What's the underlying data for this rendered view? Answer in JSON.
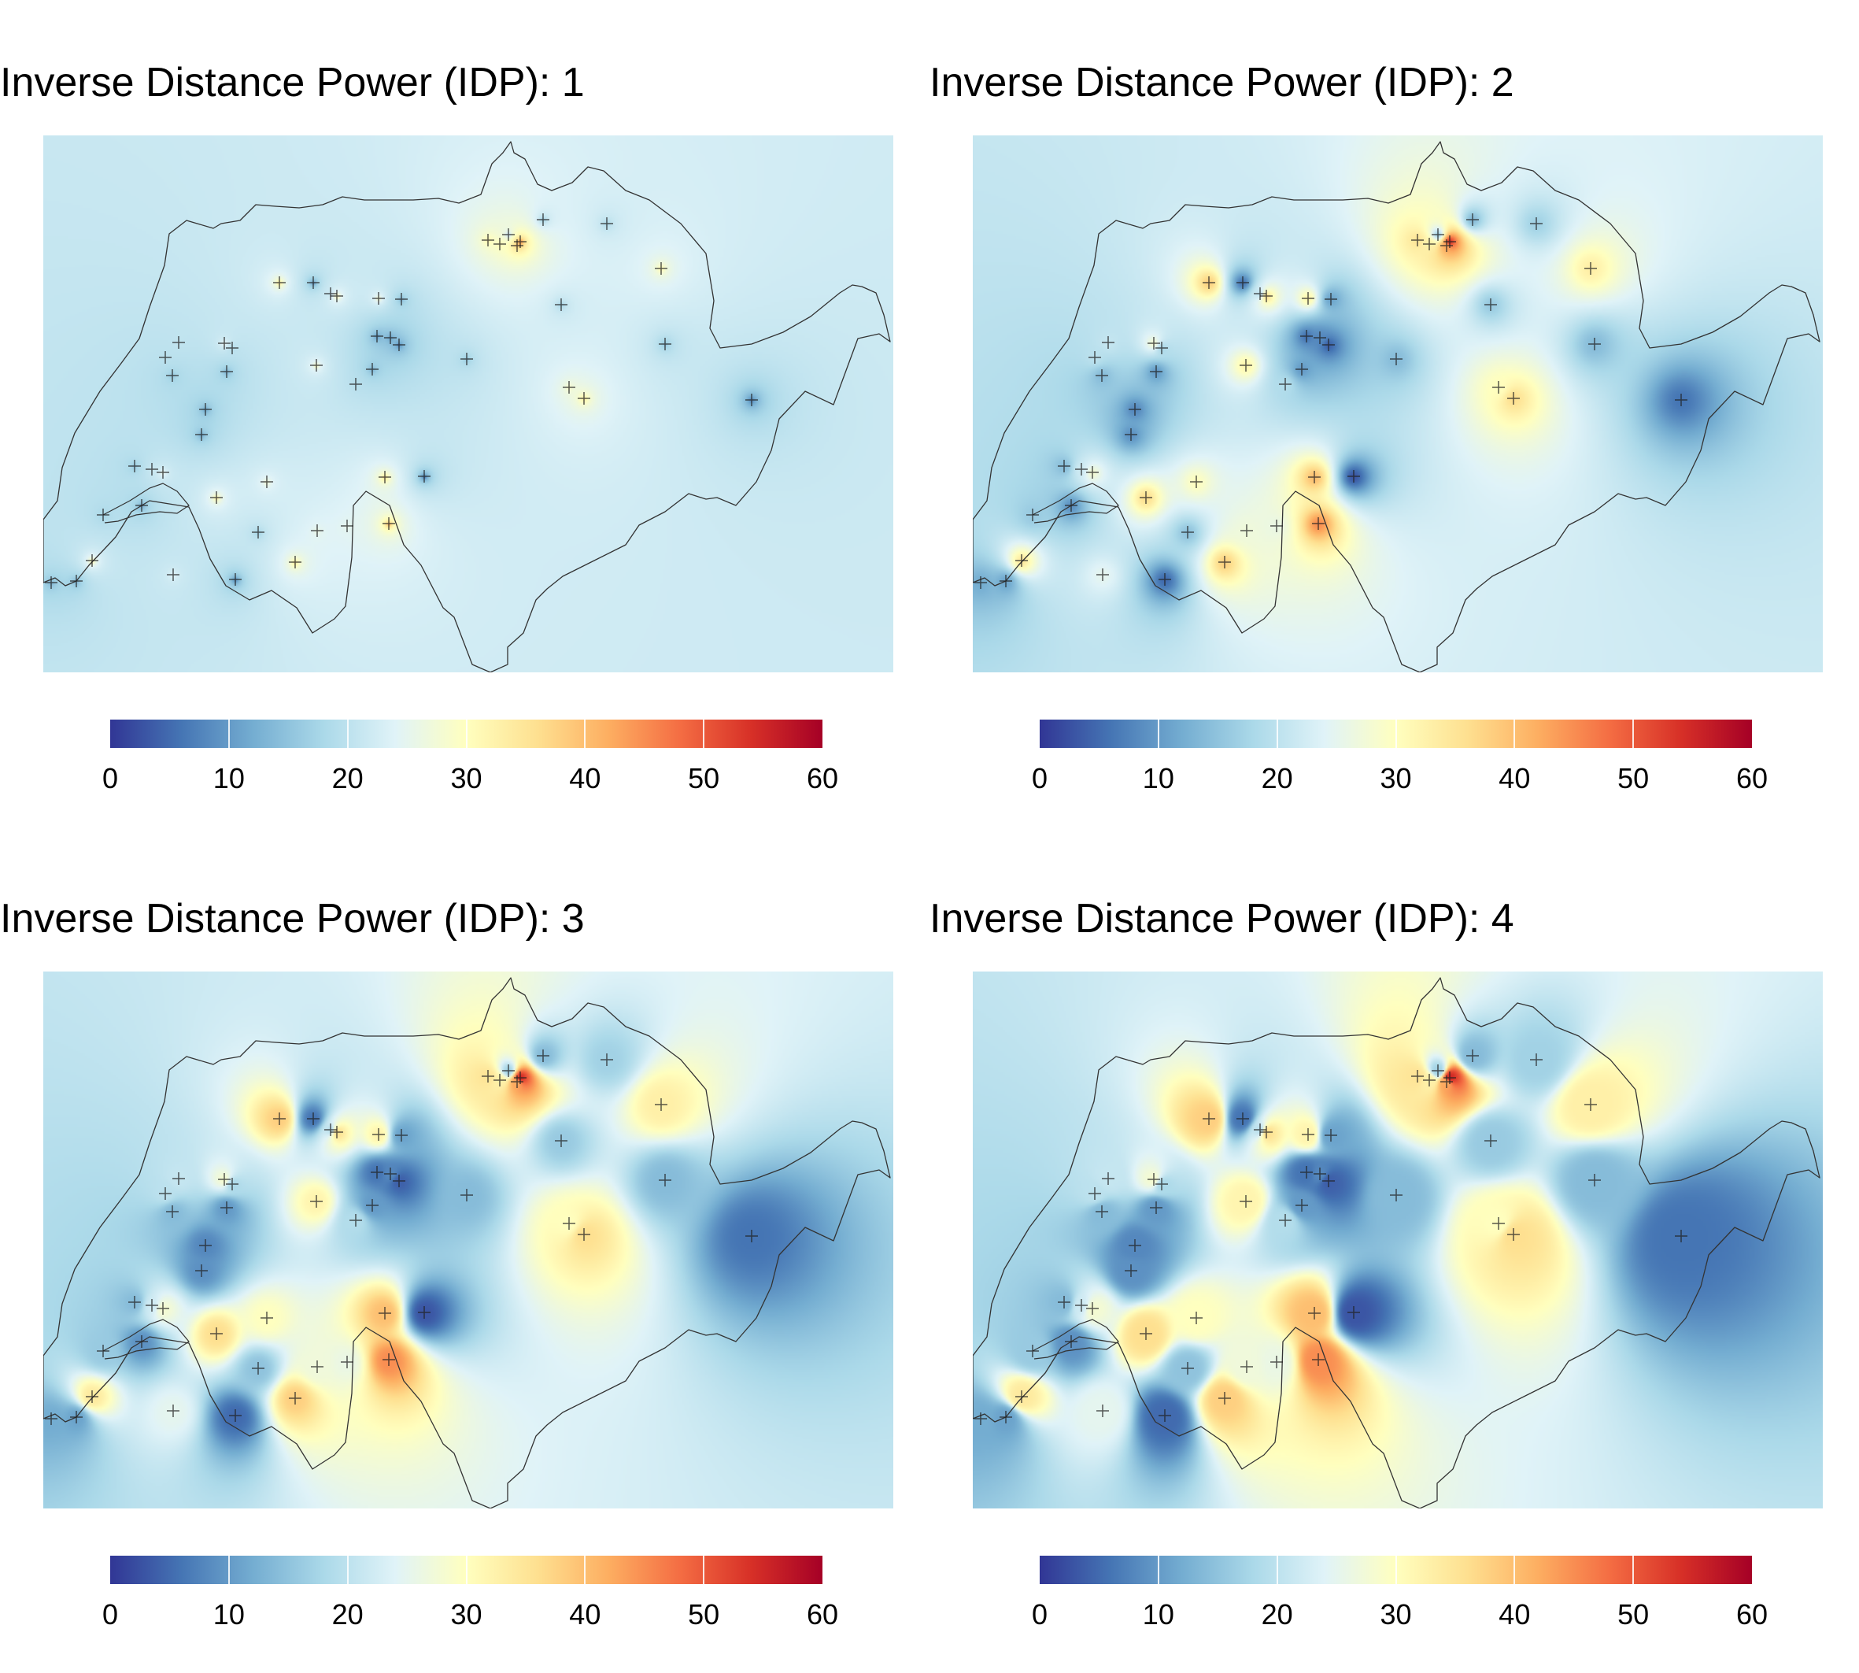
{
  "panels": [
    {
      "title": "Inverse Distance Power (IDP): 1",
      "power": 1
    },
    {
      "title": "Inverse Distance Power (IDP): 2",
      "power": 2
    },
    {
      "title": "Inverse Distance Power (IDP): 3",
      "power": 3
    },
    {
      "title": "Inverse Distance Power (IDP): 4",
      "power": 4
    }
  ],
  "legend": {
    "ticks": [
      "0",
      "10",
      "20",
      "30",
      "40",
      "50",
      "60"
    ],
    "min": 0,
    "max": 60,
    "colors": [
      "#313695",
      "#4575b4",
      "#74add1",
      "#abd9e9",
      "#e0f3f8",
      "#ffffbf",
      "#fee090",
      "#fdae61",
      "#f46d43",
      "#d73027",
      "#a50026"
    ]
  },
  "colors": {
    "border": "#333333",
    "station_marker": "#222222"
  },
  "chart_data": {
    "type": "heatmap",
    "region": "Switzerland",
    "value_range": [
      0,
      60
    ],
    "station_values": [
      12,
      11,
      16,
      34,
      28,
      14,
      22,
      9,
      36,
      25,
      30,
      40,
      45,
      15,
      5,
      38,
      3,
      26,
      27,
      9,
      18,
      14,
      8,
      32,
      19,
      10,
      28,
      21,
      20,
      38,
      36,
      20,
      6,
      32,
      8,
      6,
      10,
      11,
      4,
      14,
      35,
      33,
      14,
      42,
      55,
      17,
      17,
      30,
      36,
      16,
      33,
      14,
      6
    ]
  }
}
